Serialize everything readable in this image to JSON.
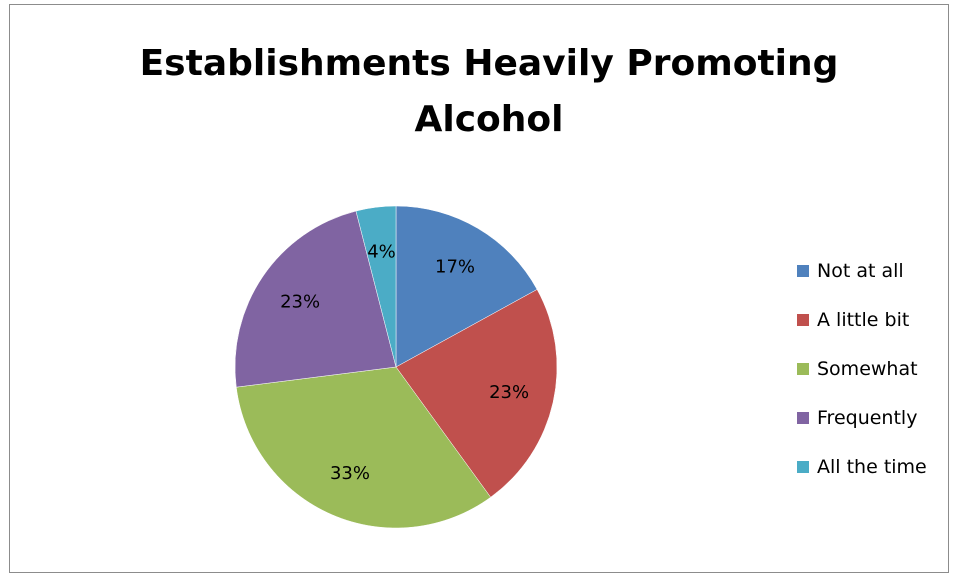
{
  "chart_data": {
    "type": "pie",
    "title": "Establishments Heavily Promoting Alcohol",
    "title_lines": [
      "Establishments Heavily Promoting",
      "Alcohol"
    ],
    "legend_position": "right",
    "slices": [
      {
        "label": "Not at all",
        "value": 17,
        "data_label": "17%",
        "color": "#4F81BD"
      },
      {
        "label": "A little bit",
        "value": 23,
        "data_label": "23%",
        "color": "#C0504D"
      },
      {
        "label": "Somewhat",
        "value": 33,
        "data_label": "33%",
        "color": "#9BBB59"
      },
      {
        "label": "Frequently",
        "value": 23,
        "data_label": "23%",
        "color": "#8064A2"
      },
      {
        "label": "All the time",
        "value": 4,
        "data_label": "4%",
        "color": "#4BACC6"
      }
    ]
  }
}
